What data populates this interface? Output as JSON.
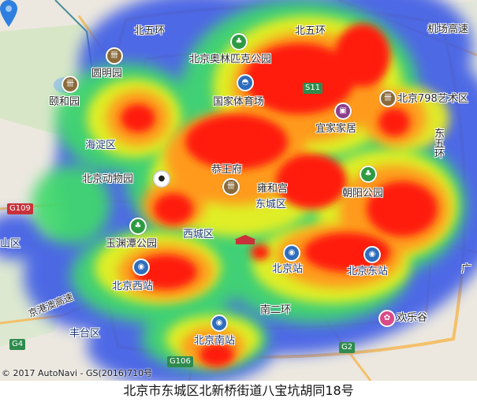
{
  "map": {
    "labels": {
      "north_fifth_ring_w": "北五环",
      "north_fifth_ring_e": "北五环",
      "olympic_park": "北京奥林匹克公园",
      "airport_expressway": "机场高速",
      "yuanmingyuan": "圆明园",
      "national_stadium": "国家体育场",
      "s11": "S11",
      "798": "北京798艺术区",
      "summer_palace": "颐和园",
      "ikea": "宜家家居",
      "haidian": "海淀区",
      "east_fifth_ring": "东五环",
      "prince_gong": "恭王府",
      "zoo": "北京动物园",
      "lama_temple": "雍和宫",
      "chaoyang_park": "朝阳公园",
      "dongcheng": "东城区",
      "g109": "G109",
      "yuyuantan": "玉渊潭公园",
      "xicheng": "西城区",
      "shanqu": "山区",
      "beijing_station": "北京站",
      "beijing_east": "北京东站",
      "guang": "广",
      "beijing_west": "北京西站",
      "jinggang_expressway": "京港澳高速",
      "south_second_ring": "南二环",
      "happy_valley": "欢乐谷",
      "fengtai": "丰台区",
      "beijing_south": "北京南站",
      "g4": "G4",
      "g2": "G2",
      "g106": "G106"
    },
    "icons": [
      "park-icon",
      "temple-icon",
      "stadium-icon",
      "shopping-icon",
      "panda-icon",
      "railway-station-icon",
      "amusement-park-icon",
      "location-pin-icon",
      "gate-icon"
    ],
    "heatmap_colors": [
      "#3c5be6",
      "#3fd96c",
      "#e8f020",
      "#ff9a1a",
      "#ff1e0a"
    ]
  },
  "copyright": "© 2017 AutoNavi - GS(2016)710号",
  "caption": "北京市东城区北新桥街道八宝坑胡同18号"
}
